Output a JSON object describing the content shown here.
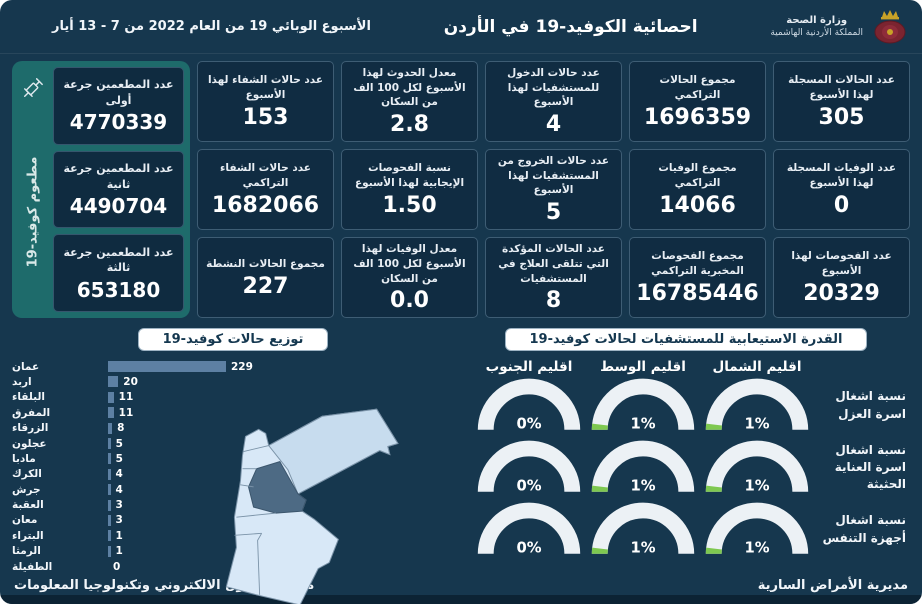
{
  "header": {
    "ministry_name": "وزارة الصحة",
    "kingdom_name": "المملكة الأردنية الهاشمية",
    "title": "احصائية الكوفيد-19 في الأردن",
    "week_info": "الأسبوع الوبائي  19 من العام 2022 من  7 - 13 أيار"
  },
  "vaccination": {
    "side_label": "مطعوم كوفيد-19",
    "cards": [
      {
        "label": "عدد المطعمين جرعة أولى",
        "value": "4770339"
      },
      {
        "label": "عدد المطعمين جرعة ثانية",
        "value": "4490704"
      },
      {
        "label": "عدد المطعمين جرعة ثالثة",
        "value": "653180"
      }
    ]
  },
  "stats": {
    "columns": [
      {
        "cards": [
          {
            "label": "عدد الحالات المسجلة لهذا الأسبوع",
            "value": "305"
          },
          {
            "label": "عدد الوفيات المسجلة لهذا الأسبوع",
            "value": "0"
          },
          {
            "label": "عدد الفحوصات لهذا الأسبوع",
            "value": "20329"
          }
        ]
      },
      {
        "cards": [
          {
            "label": "مجموع الحالات التراكمي",
            "value": "1696359"
          },
          {
            "label": "مجموع الوفيات التراكمي",
            "value": "14066"
          },
          {
            "label": "مجموع الفحوصات المخبرية التراكمي",
            "value": "16785446"
          }
        ]
      },
      {
        "cards": [
          {
            "label": "عدد حالات الدخول للمستشفيات لهذا الأسبوع",
            "value": "4"
          },
          {
            "label": "عدد حالات الخروج من المستشفيات لهذا الأسبوع",
            "value": "5"
          },
          {
            "label": "عدد الحالات المؤكدة التي تتلقى العلاج في المستشفيات",
            "value": "8"
          }
        ]
      },
      {
        "cards": [
          {
            "label": "معدل الحدوث لهذا الأسبوع لكل 100 الف من السكان",
            "value": "2.8"
          },
          {
            "label": "نسبة الفحوصات الإيجابية لهذا الأسبوع",
            "value": "1.50"
          },
          {
            "label": "معدل الوفيات لهذا الأسبوع لكل 100 الف من السكان",
            "value": "0.0"
          }
        ]
      },
      {
        "cards": [
          {
            "label": "عدد حالات الشفاء لهذا الأسبوع",
            "value": "153"
          },
          {
            "label": "عدد حالات الشفاء التراكمي",
            "value": "1682066"
          },
          {
            "label": "مجموع الحالات النشطة",
            "value": "227"
          }
        ]
      }
    ]
  },
  "footer": {
    "right": "مديرية الأمراض السارية",
    "left": "مديرية التحول الالكتروني وتكنولوجيا المعلومات"
  },
  "colors": {
    "background": "#16374e",
    "card_bg": "#102c42",
    "vaccine_panel": "#1e6b6b",
    "bar": "#5d80a3",
    "gauge_track": "#ecf1f5",
    "gauge_fill_green": "#7ec850",
    "map_land": "#d8e8f7",
    "map_mafraq": "#c7dcee",
    "map_amman_highlight": "#4d6a84",
    "title_pill_bg": "#ffffff",
    "title_pill_text": "#14374f"
  },
  "chart_data": [
    {
      "type": "bar",
      "title": "توزيع حالات كوفيد-19",
      "orientation": "horizontal",
      "categories": [
        "عمان",
        "اربد",
        "البلقاء",
        "المفرق",
        "الزرقاء",
        "عجلون",
        "مادبا",
        "الكرك",
        "جرش",
        "العقبة",
        "معان",
        "البتراء",
        "الرمثا",
        "الطفيلة"
      ],
      "values": [
        229,
        20,
        11,
        11,
        8,
        5,
        5,
        4,
        4,
        3,
        3,
        1,
        1,
        0
      ],
      "xlabel": "",
      "ylabel": "",
      "xlim": [
        0,
        240
      ],
      "grid": false,
      "value_labels": "at-bar-end"
    },
    {
      "type": "gauge-grid",
      "title": "القدرة الاستيعابية للمستشفيات لحالات كوفيد-19",
      "columns": [
        "اقليم الشمال",
        "اقليم الوسط",
        "اقليم الجنوب"
      ],
      "rows": [
        {
          "label": "نسبة اشغال اسرة العزل",
          "values_pct": [
            1,
            1,
            0
          ]
        },
        {
          "label": "نسبة اشغال اسرة العناية الحثيثة",
          "values_pct": [
            1,
            1,
            0
          ]
        },
        {
          "label": "نسبة اشغال أجهزة التنفس",
          "values_pct": [
            1,
            1,
            0
          ]
        }
      ],
      "unit": "%",
      "range": [
        0,
        100
      ]
    }
  ]
}
